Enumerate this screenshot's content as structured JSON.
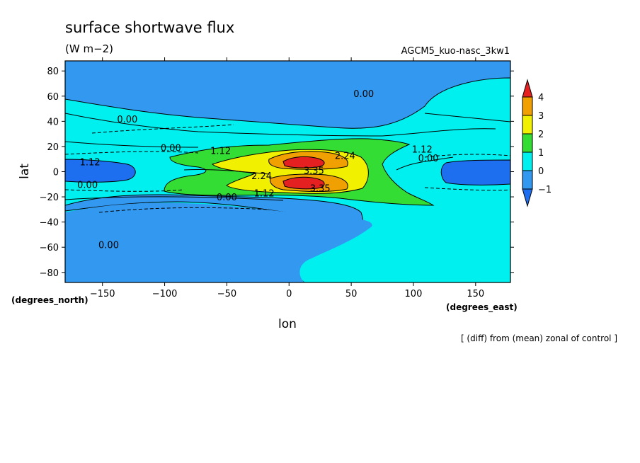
{
  "chart_data": {
    "type": "contour",
    "title": "surface shortwave flux",
    "units": "(W m−2)",
    "experiment": "AGCM5_kuo-nasc_3kw1",
    "xlabel": "lon",
    "ylabel": "lat",
    "x_unit_note": "(degrees_east)",
    "y_unit_note": "(degrees_north)",
    "footnote": "[ (diff) from (mean) zonal of control ]",
    "xlim": [
      -180,
      178
    ],
    "ylim": [
      -88,
      88
    ],
    "x_ticks": [
      -150,
      -100,
      -50,
      0,
      50,
      100,
      150
    ],
    "y_ticks": [
      -80,
      -60,
      -40,
      -20,
      0,
      20,
      40,
      60,
      80
    ],
    "colorbar": {
      "levels": [
        -1,
        0,
        1,
        2,
        3,
        4
      ],
      "level_labels": [
        "−1",
        "0",
        "1",
        "2",
        "3",
        "4"
      ],
      "colors": [
        "#1e6ff0",
        "#3399f0",
        "#00f0f0",
        "#33dd33",
        "#f0f000",
        "#f0a000",
        "#e52020"
      ],
      "extend": "both"
    },
    "contour_labels": [
      {
        "text": "0.00",
        "lon": 60,
        "lat": 62
      },
      {
        "text": "0.00",
        "lon": -130,
        "lat": 42
      },
      {
        "text": "0.00",
        "lon": -95,
        "lat": 19
      },
      {
        "text": "1.12",
        "lon": -55,
        "lat": 17
      },
      {
        "text": "1.12",
        "lon": -160,
        "lat": 8
      },
      {
        "text": "0.00",
        "lon": -162,
        "lat": -10
      },
      {
        "text": "2.24",
        "lon": 45,
        "lat": 13
      },
      {
        "text": "3.35",
        "lon": 20,
        "lat": 1
      },
      {
        "text": "2.24",
        "lon": -22,
        "lat": -3
      },
      {
        "text": "3.35",
        "lon": 25,
        "lat": -13
      },
      {
        "text": "1.12",
        "lon": -20,
        "lat": -17
      },
      {
        "text": "0.00",
        "lon": -50,
        "lat": -20
      },
      {
        "text": "1.12",
        "lon": 107,
        "lat": 18
      },
      {
        "text": "0.00",
        "lon": 112,
        "lat": 11
      },
      {
        "text": "0.00",
        "lon": -145,
        "lat": -58
      }
    ]
  }
}
